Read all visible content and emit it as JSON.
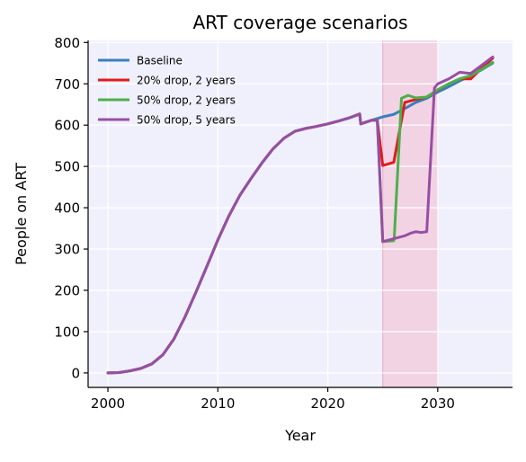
{
  "chart_data": {
    "type": "line",
    "title": "ART coverage scenarios",
    "xlabel": "Year",
    "ylabel": "People on ART",
    "xlim": [
      1998.2,
      2036.8
    ],
    "ylim": [
      -35,
      805
    ],
    "xticks": [
      2000,
      2010,
      2020,
      2030
    ],
    "yticks": [
      0,
      100,
      200,
      300,
      400,
      500,
      600,
      700,
      800
    ],
    "grid": true,
    "legend_position": "top-left",
    "shaded_region": {
      "x_start": 2025,
      "x_end": 2030,
      "color": "#f2c6d8"
    },
    "series": [
      {
        "name": "Baseline",
        "color": "#3a7fbf",
        "points": [
          [
            2000,
            0
          ],
          [
            2001,
            1
          ],
          [
            2002,
            5
          ],
          [
            2003,
            11
          ],
          [
            2004,
            22
          ],
          [
            2005,
            44
          ],
          [
            2006,
            82
          ],
          [
            2007,
            135
          ],
          [
            2008,
            195
          ],
          [
            2009,
            258
          ],
          [
            2010,
            322
          ],
          [
            2011,
            380
          ],
          [
            2012,
            430
          ],
          [
            2013,
            470
          ],
          [
            2014,
            508
          ],
          [
            2015,
            542
          ],
          [
            2016,
            568
          ],
          [
            2017,
            585
          ],
          [
            2018,
            592
          ],
          [
            2019,
            597
          ],
          [
            2020,
            603
          ],
          [
            2021,
            610
          ],
          [
            2022,
            618
          ],
          [
            2022.9,
            627
          ],
          [
            2023,
            603
          ],
          [
            2024,
            612
          ],
          [
            2025,
            620
          ],
          [
            2026,
            626
          ],
          [
            2027,
            640
          ],
          [
            2028,
            655
          ],
          [
            2029,
            665
          ],
          [
            2030,
            680
          ],
          [
            2031,
            693
          ],
          [
            2032,
            707
          ],
          [
            2033,
            720
          ],
          [
            2034,
            734
          ],
          [
            2035,
            750
          ]
        ]
      },
      {
        "name": "20% drop, 2 years",
        "color": "#e31a1c",
        "points": [
          [
            2000,
            0
          ],
          [
            2001,
            1
          ],
          [
            2002,
            5
          ],
          [
            2003,
            11
          ],
          [
            2004,
            22
          ],
          [
            2005,
            44
          ],
          [
            2006,
            82
          ],
          [
            2007,
            135
          ],
          [
            2008,
            195
          ],
          [
            2009,
            258
          ],
          [
            2010,
            322
          ],
          [
            2011,
            380
          ],
          [
            2012,
            430
          ],
          [
            2013,
            470
          ],
          [
            2014,
            508
          ],
          [
            2015,
            542
          ],
          [
            2016,
            568
          ],
          [
            2017,
            585
          ],
          [
            2018,
            592
          ],
          [
            2019,
            597
          ],
          [
            2020,
            603
          ],
          [
            2021,
            610
          ],
          [
            2022,
            618
          ],
          [
            2022.9,
            627
          ],
          [
            2023,
            603
          ],
          [
            2024,
            612
          ],
          [
            2024.5,
            612
          ],
          [
            2025,
            502
          ],
          [
            2026,
            510
          ],
          [
            2027,
            655
          ],
          [
            2028,
            662
          ],
          [
            2029,
            668
          ],
          [
            2030,
            685
          ],
          [
            2031,
            700
          ],
          [
            2032,
            712
          ],
          [
            2033,
            712
          ],
          [
            2034,
            738
          ],
          [
            2035,
            762
          ]
        ]
      },
      {
        "name": "50% drop, 2 years",
        "color": "#4daf4a",
        "points": [
          [
            2000,
            0
          ],
          [
            2001,
            1
          ],
          [
            2002,
            5
          ],
          [
            2003,
            11
          ],
          [
            2004,
            22
          ],
          [
            2005,
            44
          ],
          [
            2006,
            82
          ],
          [
            2007,
            135
          ],
          [
            2008,
            195
          ],
          [
            2009,
            258
          ],
          [
            2010,
            322
          ],
          [
            2011,
            380
          ],
          [
            2012,
            430
          ],
          [
            2013,
            470
          ],
          [
            2014,
            508
          ],
          [
            2015,
            542
          ],
          [
            2016,
            568
          ],
          [
            2017,
            585
          ],
          [
            2018,
            592
          ],
          [
            2019,
            597
          ],
          [
            2020,
            603
          ],
          [
            2021,
            610
          ],
          [
            2022,
            618
          ],
          [
            2022.9,
            627
          ],
          [
            2023,
            603
          ],
          [
            2024,
            612
          ],
          [
            2024.5,
            612
          ],
          [
            2025,
            318
          ],
          [
            2026,
            320
          ],
          [
            2026.05,
            330
          ],
          [
            2026.7,
            665
          ],
          [
            2027.3,
            672
          ],
          [
            2028,
            666
          ],
          [
            2029,
            668
          ],
          [
            2030,
            686
          ],
          [
            2031,
            700
          ],
          [
            2032,
            712
          ],
          [
            2033,
            720
          ],
          [
            2034,
            735
          ],
          [
            2035,
            752
          ]
        ]
      },
      {
        "name": "50% drop, 5 years",
        "color": "#984ea3",
        "points": [
          [
            2000,
            0
          ],
          [
            2001,
            1
          ],
          [
            2002,
            5
          ],
          [
            2003,
            11
          ],
          [
            2004,
            22
          ],
          [
            2005,
            44
          ],
          [
            2006,
            82
          ],
          [
            2007,
            135
          ],
          [
            2008,
            195
          ],
          [
            2009,
            258
          ],
          [
            2010,
            322
          ],
          [
            2011,
            380
          ],
          [
            2012,
            430
          ],
          [
            2013,
            470
          ],
          [
            2014,
            508
          ],
          [
            2015,
            542
          ],
          [
            2016,
            568
          ],
          [
            2017,
            585
          ],
          [
            2018,
            592
          ],
          [
            2019,
            597
          ],
          [
            2020,
            603
          ],
          [
            2021,
            610
          ],
          [
            2022,
            618
          ],
          [
            2022.9,
            627
          ],
          [
            2023,
            603
          ],
          [
            2024,
            612
          ],
          [
            2024.5,
            612
          ],
          [
            2025,
            318
          ],
          [
            2026,
            325
          ],
          [
            2027,
            332
          ],
          [
            2027.5,
            338
          ],
          [
            2028,
            342
          ],
          [
            2028.5,
            340
          ],
          [
            2029,
            342
          ],
          [
            2029.7,
            690
          ],
          [
            2030,
            700
          ],
          [
            2031,
            712
          ],
          [
            2032,
            728
          ],
          [
            2033,
            725
          ],
          [
            2034,
            745
          ],
          [
            2035,
            765
          ]
        ]
      }
    ]
  }
}
